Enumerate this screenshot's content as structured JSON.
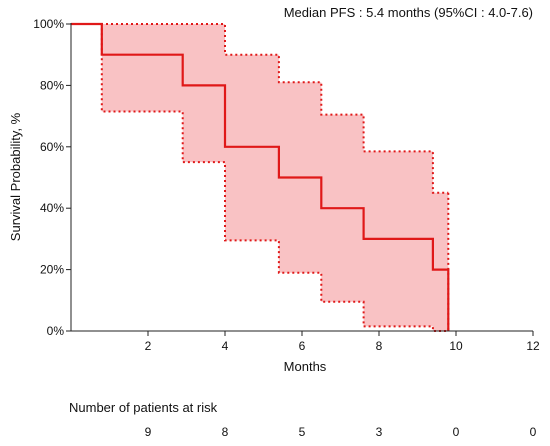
{
  "chart_data": {
    "type": "line",
    "title": "",
    "annotation": "Median PFS : 5.4 months (95%CI : 4.0-7.6)",
    "xlabel": "Months",
    "ylabel": "Survival Probability, %",
    "xlim": [
      0,
      12
    ],
    "ylim": [
      0,
      100
    ],
    "x_ticks": [
      2,
      4,
      6,
      8,
      10,
      12
    ],
    "y_ticks": [
      0,
      20,
      40,
      60,
      80,
      100
    ],
    "y_tick_labels": [
      "0%",
      "20%",
      "40%",
      "60%",
      "80%",
      "100%"
    ],
    "grid": false,
    "series": [
      {
        "color": "#e01818",
        "style": "step",
        "x": [
          0,
          0.8,
          2.9,
          4.0,
          5.4,
          6.5,
          7.6,
          9.4,
          9.8
        ],
        "y": [
          100,
          90,
          80,
          60,
          50,
          40,
          30,
          20,
          0
        ]
      }
    ],
    "confidence_band": {
      "color": "#e01818",
      "fill": "#f9c2c4",
      "x": [
        0,
        0.8,
        2.9,
        4.0,
        5.4,
        6.5,
        7.6,
        9.4,
        9.8
      ],
      "upper": [
        100,
        100,
        100,
        90,
        81,
        70.5,
        58.5,
        45,
        45
      ],
      "lower": [
        100,
        71.5,
        55,
        29.5,
        19,
        9.5,
        1.5,
        0,
        0
      ]
    }
  },
  "risk_table": {
    "title": "Number of patients at risk",
    "x": [
      2,
      4,
      6,
      8,
      10,
      12
    ],
    "counts": [
      "9",
      "8",
      "5",
      "3",
      "0",
      "0"
    ]
  }
}
